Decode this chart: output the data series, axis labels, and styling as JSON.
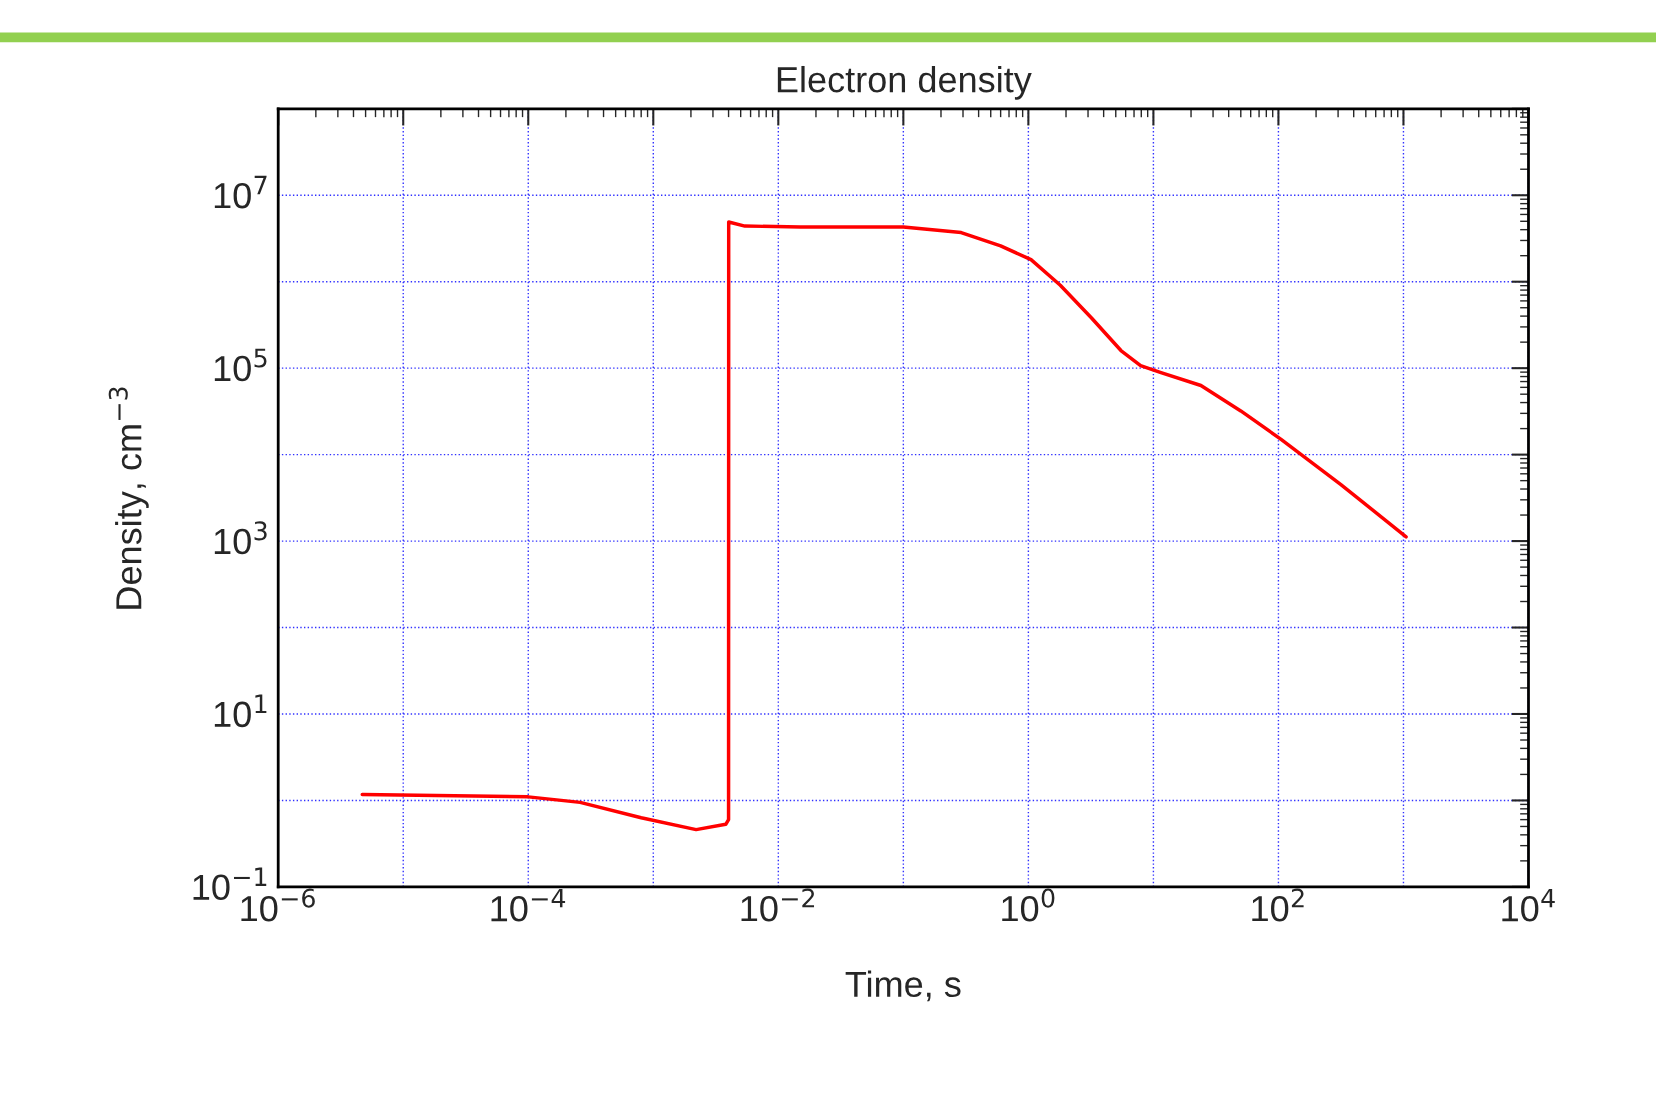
{
  "chart_data": {
    "type": "line",
    "title": "Electron density",
    "xlabel": "Time, s",
    "ylabel": "Density, cm$^{−3}$",
    "log": "xy",
    "grid": true,
    "marker": "none",
    "line_style": "solid",
    "xlim": [
      1e-06,
      10000
    ],
    "ylim": [
      0.1,
      100000000
    ],
    "xticks": [
      {
        "value": 1e-06,
        "label": "10$^{−6}$"
      },
      {
        "value": 1e-05,
        "label": null
      },
      {
        "value": 0.0001,
        "label": "10$^{−4}$"
      },
      {
        "value": 0.001,
        "label": null
      },
      {
        "value": 0.01,
        "label": "10$^{−2}$"
      },
      {
        "value": 0.1,
        "label": null
      },
      {
        "value": 1,
        "label": "10$^{0}$"
      },
      {
        "value": 10,
        "label": null
      },
      {
        "value": 100,
        "label": "10$^{2}$"
      },
      {
        "value": 1000,
        "label": null
      },
      {
        "value": 10000,
        "label": "10$^{4}$"
      }
    ],
    "yticks": [
      {
        "value": 0.1,
        "label": "10$^{−1}$"
      },
      {
        "value": 1,
        "label": null
      },
      {
        "value": 10,
        "label": "10$^{1}$"
      },
      {
        "value": 100,
        "label": null
      },
      {
        "value": 1000,
        "label": "10$^{3}$"
      },
      {
        "value": 10000,
        "label": null
      },
      {
        "value": 100000,
        "label": "10$^{5}$"
      },
      {
        "value": 1000000,
        "label": null
      },
      {
        "value": 10000000,
        "label": "10$^{7}$"
      },
      {
        "value": 100000000,
        "label": null
      }
    ],
    "series": [
      {
        "color": "#ff0000",
        "x": [
          4.7e-06,
          0.0001,
          0.00026,
          0.0008,
          0.0022,
          0.0038,
          0.004,
          0.00401,
          0.0054,
          0.015,
          0.1,
          0.29,
          0.6,
          1.05,
          1.8,
          3.2,
          5.5,
          7.9,
          11.5,
          24,
          50,
          105,
          316,
          1050
        ],
        "values": [
          1.17,
          1.1,
          0.95,
          0.63,
          0.46,
          0.53,
          0.6,
          4900000,
          4400000,
          4300000,
          4300000,
          3700000,
          2600000,
          1800000,
          910000,
          380000,
          160000,
          107000,
          89000,
          63000,
          32000,
          15000,
          4500,
          1120
        ]
      }
    ]
  }
}
